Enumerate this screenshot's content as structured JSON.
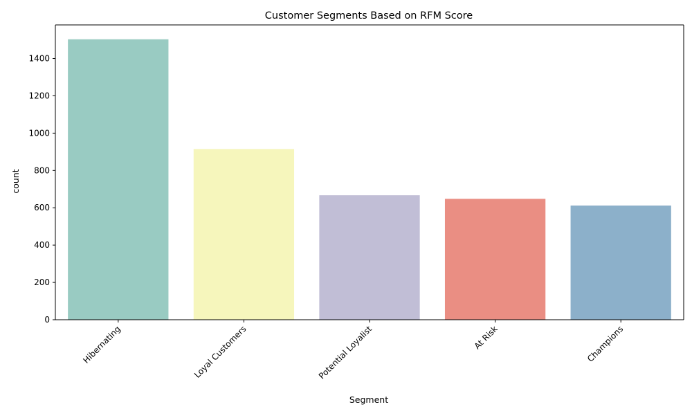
{
  "chart_data": {
    "type": "bar",
    "title": "Customer Segments Based on RFM Score",
    "xlabel": "Segment",
    "ylabel": "count",
    "categories": [
      "Hibernating",
      "Loyal Customers",
      "Potential Loyalist",
      "At Risk",
      "Champions"
    ],
    "values": [
      1503,
      915,
      667,
      648,
      612
    ],
    "colors": [
      "#99cbc2",
      "#f6f6bc",
      "#c1bed6",
      "#ea8e83",
      "#8cb0ca"
    ],
    "ylim": [
      0,
      1580
    ],
    "yticks": [
      0,
      200,
      400,
      600,
      800,
      1000,
      1200,
      1400
    ],
    "grid": false,
    "legend": "none"
  }
}
